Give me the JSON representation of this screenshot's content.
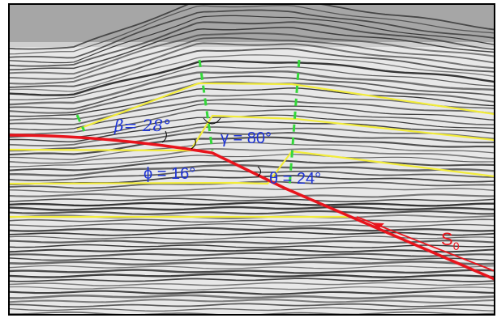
{
  "labels": {
    "beta": "β= 28°",
    "gamma": "γ = 80°",
    "phi": "ϕ = 16°",
    "theta": "θ = 24°",
    "surface": "S",
    "surface_subscript": "0"
  },
  "colors": {
    "fault": "#e8141c",
    "horizon": "#f2ec3a",
    "axial_surface": "#34d93a",
    "angle_text": "#1f35d6",
    "seismic_dark": "#2a2a2a",
    "seismic_light": "#e8e8e8",
    "surface_label": "#e8141c",
    "frame": "#000000"
  }
}
